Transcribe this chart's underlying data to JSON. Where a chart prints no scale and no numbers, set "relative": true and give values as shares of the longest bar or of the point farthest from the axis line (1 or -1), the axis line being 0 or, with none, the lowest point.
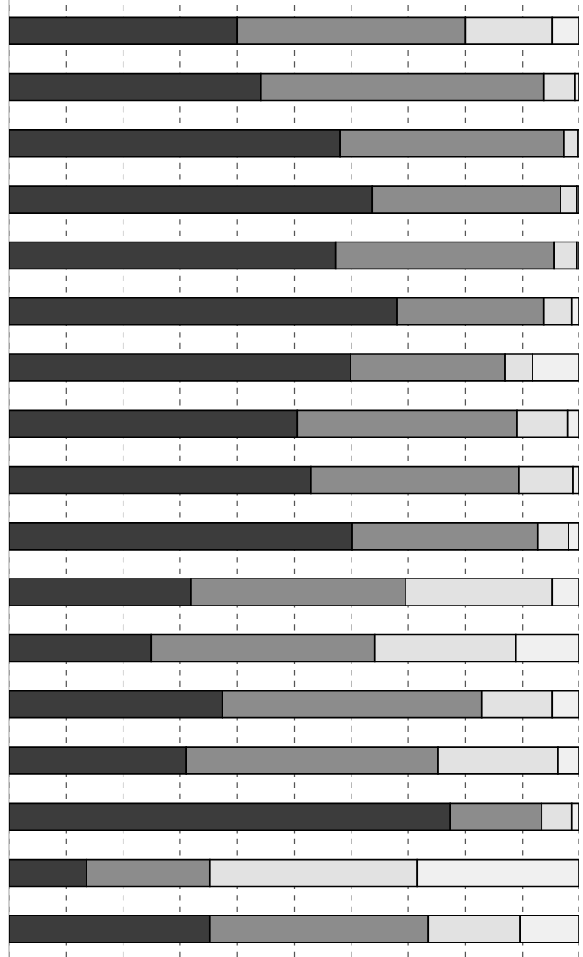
{
  "chart_data": {
    "type": "bar",
    "orientation": "horizontal",
    "stacked": true,
    "relative": true,
    "grid": "x",
    "categories": [
      null,
      null,
      null,
      null,
      null,
      null,
      null,
      null,
      null,
      null,
      null,
      null,
      null,
      null,
      null,
      null,
      null
    ],
    "series": [
      {
        "color": "#3c3c3c",
        "values": [
          0.4,
          0.442,
          0.58,
          0.637,
          0.573,
          0.681,
          0.599,
          0.506,
          0.529,
          0.602,
          0.319,
          0.25,
          0.374,
          0.31,
          0.773,
          0.136,
          0.352
        ]
      },
      {
        "color": "#8c8c8c",
        "values": [
          0.4,
          0.496,
          0.393,
          0.33,
          0.383,
          0.257,
          0.27,
          0.385,
          0.365,
          0.325,
          0.376,
          0.391,
          0.455,
          0.442,
          0.161,
          0.216,
          0.383
        ]
      },
      {
        "color": "#e2e2e2",
        "values": [
          0.153,
          0.054,
          0.024,
          0.028,
          0.039,
          0.049,
          0.049,
          0.088,
          0.095,
          0.054,
          0.258,
          0.248,
          0.124,
          0.21,
          0.053,
          0.364,
          0.161
        ]
      },
      {
        "color": "#f0f0f0",
        "values": [
          0.047,
          0.008,
          0.003,
          0.005,
          0.005,
          0.013,
          0.082,
          0.021,
          0.011,
          0.019,
          0.047,
          0.111,
          0.047,
          0.038,
          0.013,
          0.284,
          0.104
        ]
      }
    ]
  }
}
